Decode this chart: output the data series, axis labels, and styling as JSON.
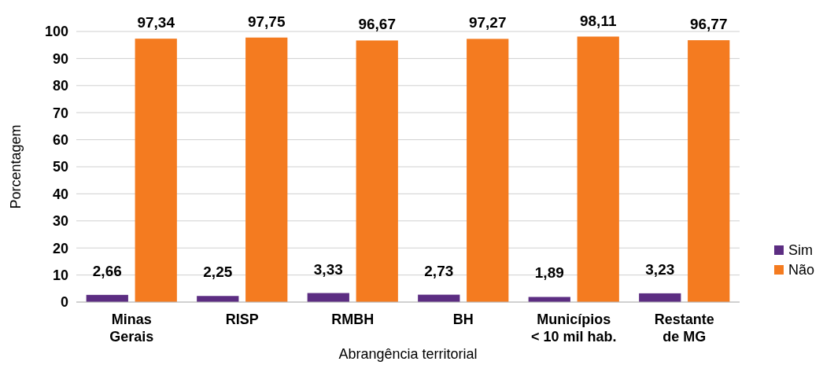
{
  "chart_data": {
    "type": "bar",
    "xlabel": "Abrangência territorial",
    "ylabel": "Porcentagem",
    "categories": [
      "Minas Gerais",
      "RISP",
      "RMBH",
      "BH",
      "Municípios < 10 mil hab.",
      "Restante de MG"
    ],
    "series": [
      {
        "name": "Sim",
        "color": "#5c2d82",
        "values": [
          2.66,
          2.25,
          3.33,
          2.73,
          1.89,
          3.23
        ],
        "value_labels": [
          "2,66",
          "2,25",
          "3,33",
          "2,73",
          "1,89",
          "3,23"
        ]
      },
      {
        "name": "Não",
        "color": "#f47b20",
        "values": [
          97.34,
          97.75,
          96.67,
          97.27,
          98.11,
          96.77
        ],
        "value_labels": [
          "97,34",
          "97,75",
          "96,67",
          "97,27",
          "98,11",
          "96,77"
        ]
      }
    ],
    "ylim": [
      0,
      100
    ],
    "yticks": [
      0,
      10,
      20,
      30,
      40,
      50,
      60,
      70,
      80,
      90,
      100
    ],
    "grid": "y",
    "legend": "right"
  }
}
